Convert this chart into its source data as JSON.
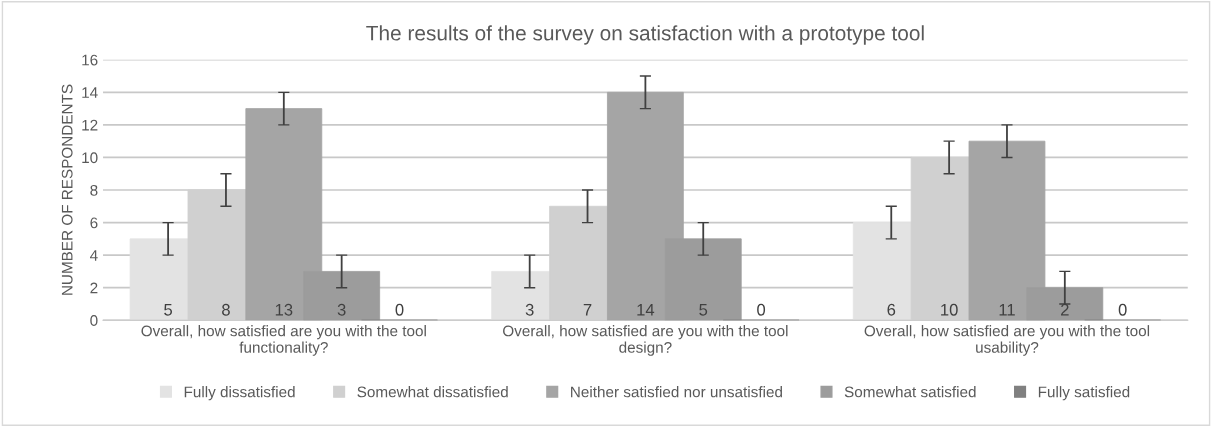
{
  "chart_data": {
    "type": "bar",
    "title": "The results of the survey on satisfaction with a prototype tool",
    "ylabel": "NUMBER OF RESPONDENTS",
    "categories": [
      "Overall, how satisfied are you with the tool functionality?",
      "Overall, how satisfied are you with the tool design?",
      "Overall, how satisfied are you with the tool usability?"
    ],
    "series": [
      {
        "name": "Fully dissatisfied",
        "color": "#e3e3e3",
        "values": [
          5,
          3,
          6
        ],
        "errors": [
          1,
          1,
          1
        ]
      },
      {
        "name": "Somewhat dissatisfied",
        "color": "#d0d0d0",
        "values": [
          8,
          7,
          10
        ],
        "errors": [
          1,
          1,
          1
        ]
      },
      {
        "name": "Neither satisfied nor unsatisfied",
        "color": "#a5a5a5",
        "values": [
          13,
          14,
          11
        ],
        "errors": [
          1,
          1,
          1
        ]
      },
      {
        "name": "Somewhat satisfied",
        "color": "#9c9c9c",
        "values": [
          3,
          5,
          2
        ],
        "errors": [
          1,
          1,
          1
        ]
      },
      {
        "name": "Fully satisfied",
        "color": "#808080",
        "values": [
          0,
          0,
          0
        ],
        "errors": [
          null,
          null,
          null
        ]
      }
    ],
    "ylim": [
      0,
      16
    ],
    "yticks": [
      0,
      2,
      4,
      6,
      8,
      10,
      12,
      14,
      16
    ],
    "grid": "y",
    "legend": "bottom",
    "data_labels": true
  }
}
